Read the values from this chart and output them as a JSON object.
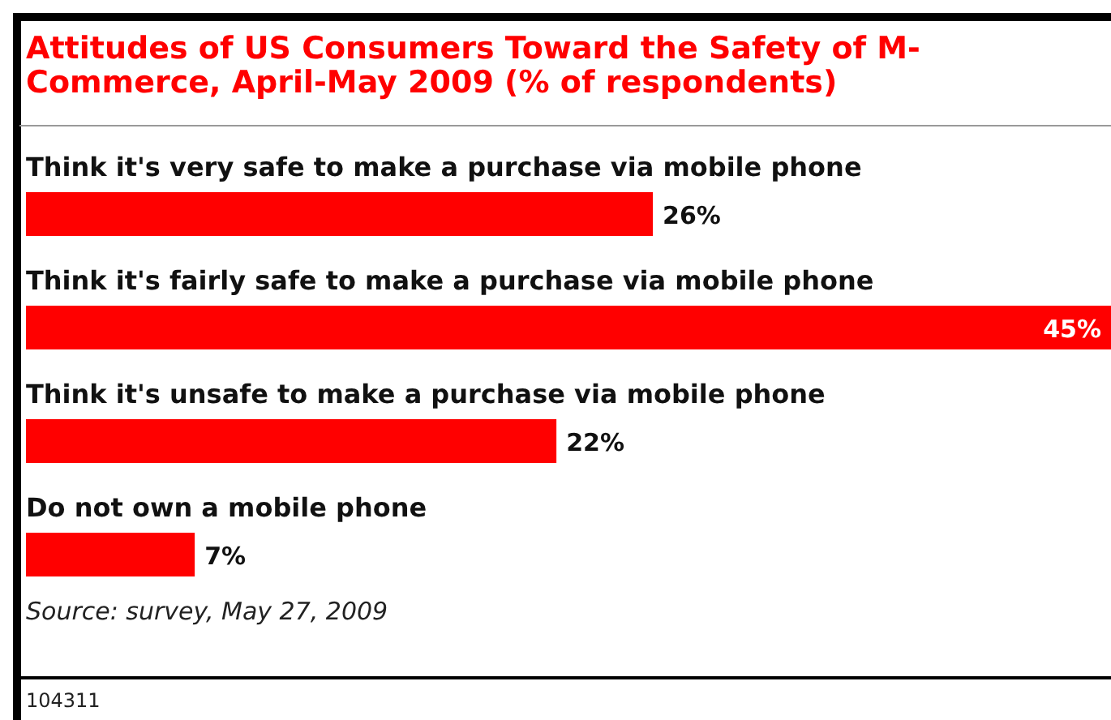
{
  "chart_data": {
    "type": "bar",
    "orientation": "horizontal",
    "title": "Attitudes of US Consumers Toward the Safety of M-Commerce, April-May 2009 (% of respondents)",
    "categories": [
      "Think it's very safe to make a purchase via mobile phone",
      "Think it's fairly safe to make a purchase via mobile phone",
      "Think it's unsafe to make a purchase via mobile phone",
      "Do not own a mobile phone"
    ],
    "values": [
      26,
      45,
      22,
      7
    ],
    "value_labels": [
      "26%",
      "45%",
      "22%",
      "7%"
    ],
    "color": "#ff0000",
    "legend": false,
    "annotations": [
      "Source: survey, May 27, 2009",
      "104311"
    ]
  }
}
